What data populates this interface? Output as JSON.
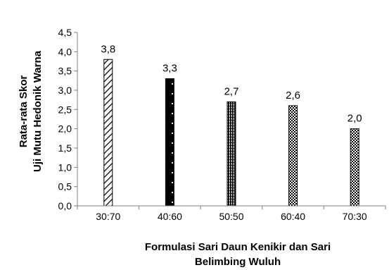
{
  "chart_data": {
    "type": "bar",
    "categories": [
      "30:70",
      "40:60",
      "50:50",
      "60:40",
      "70:30"
    ],
    "values": [
      3.8,
      3.3,
      2.7,
      2.6,
      2.0
    ],
    "value_labels": [
      "3,8",
      "3,3",
      "2,7",
      "2,6",
      "2,0"
    ],
    "ylim": [
      0,
      4.5
    ],
    "yticks": [
      "0,0",
      "0,5",
      "1,0",
      "1,5",
      "2,0",
      "2,5",
      "3,0",
      "3,5",
      "4,0",
      "4,5"
    ],
    "ylabel_line1": "Rata-rata Skor",
    "ylabel_line2": "Uji Mutu Hedonik Warna",
    "xlabel_line1": "Formulasi Sari Daun Kenikir dan Sari",
    "xlabel_line2": "Belimbing Wuluh",
    "grid": false,
    "bar_patterns": [
      "diag",
      "solid-dotted",
      "dense-vertical",
      "checker",
      "checker"
    ]
  }
}
